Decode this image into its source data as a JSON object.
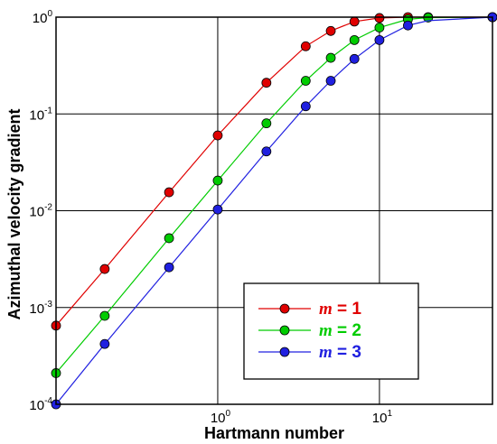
{
  "chart_data": {
    "type": "line",
    "xscale": "log",
    "yscale": "log",
    "xlim": [
      0.1,
      50
    ],
    "ylim": [
      0.0001,
      1
    ],
    "xlabel": "Hartmann number",
    "ylabel": "Azimuthal velocity gradient",
    "grid": true,
    "legend_position": "bottom-right",
    "x_ticks": [
      {
        "value": 1,
        "base": "10",
        "exp": "0"
      },
      {
        "value": 10,
        "base": "10",
        "exp": "1"
      }
    ],
    "y_ticks": [
      {
        "value": 0.0001,
        "base": "10",
        "exp": "-4"
      },
      {
        "value": 0.001,
        "base": "10",
        "exp": "-3"
      },
      {
        "value": 0.01,
        "base": "10",
        "exp": "-2"
      },
      {
        "value": 0.1,
        "base": "10",
        "exp": "-1"
      },
      {
        "value": 1,
        "base": "10",
        "exp": "0"
      }
    ],
    "series": [
      {
        "name": "m = 1",
        "label_var": "m",
        "label_eq": " = 1",
        "color": "#e00000",
        "points": [
          [
            0.1,
            0.00065
          ],
          [
            0.2,
            0.0025
          ],
          [
            0.5,
            0.0155
          ],
          [
            1.0,
            0.06
          ],
          [
            2.0,
            0.21
          ],
          [
            3.5,
            0.5
          ],
          [
            5.0,
            0.72
          ],
          [
            7.0,
            0.9
          ],
          [
            10.0,
            0.98
          ],
          [
            15.0,
            1.0
          ],
          [
            20.0,
            1.0
          ],
          [
            50.0,
            1.0
          ]
        ],
        "markers": [
          [
            0.1,
            0.00065
          ],
          [
            0.2,
            0.0025
          ],
          [
            0.5,
            0.0155
          ],
          [
            1.0,
            0.06
          ],
          [
            2.0,
            0.21
          ],
          [
            3.5,
            0.5
          ],
          [
            5.0,
            0.72
          ],
          [
            7.0,
            0.9
          ],
          [
            10.0,
            0.98
          ],
          [
            15.0,
            1.0
          ],
          [
            20.0,
            1.0
          ],
          [
            50.0,
            1.0
          ]
        ]
      },
      {
        "name": "m = 2",
        "label_var": "m",
        "label_eq": " = 2",
        "color": "#00cc00",
        "points": [
          [
            0.1,
            0.00021
          ],
          [
            0.2,
            0.00082
          ],
          [
            0.5,
            0.0052
          ],
          [
            1.0,
            0.0205
          ],
          [
            2.0,
            0.08
          ],
          [
            3.5,
            0.22
          ],
          [
            5.0,
            0.38
          ],
          [
            7.0,
            0.58
          ],
          [
            10.0,
            0.78
          ],
          [
            15.0,
            0.95
          ],
          [
            20.0,
            0.99
          ],
          [
            50.0,
            1.0
          ]
        ],
        "markers": [
          [
            0.1,
            0.00021
          ],
          [
            0.2,
            0.00082
          ],
          [
            0.5,
            0.0052
          ],
          [
            1.0,
            0.0205
          ],
          [
            2.0,
            0.08
          ],
          [
            3.5,
            0.22
          ],
          [
            5.0,
            0.38
          ],
          [
            7.0,
            0.58
          ],
          [
            10.0,
            0.78
          ],
          [
            15.0,
            0.95
          ],
          [
            20.0,
            0.99
          ],
          [
            50.0,
            1.0
          ]
        ]
      },
      {
        "name": "m = 3",
        "label_var": "m",
        "label_eq": " = 3",
        "color": "#2020e0",
        "points": [
          [
            0.1,
            0.0001
          ],
          [
            0.2,
            0.00042
          ],
          [
            0.5,
            0.0026
          ],
          [
            1.0,
            0.0103
          ],
          [
            2.0,
            0.041
          ],
          [
            3.5,
            0.12
          ],
          [
            5.0,
            0.22
          ],
          [
            7.0,
            0.37
          ],
          [
            10.0,
            0.58
          ],
          [
            15.0,
            0.82
          ],
          [
            20.0,
            0.92
          ],
          [
            50.0,
            1.0
          ]
        ],
        "markers": [
          [
            0.1,
            0.0001
          ],
          [
            0.2,
            0.00042
          ],
          [
            0.5,
            0.0026
          ],
          [
            1.0,
            0.0103
          ],
          [
            2.0,
            0.041
          ],
          [
            3.5,
            0.12
          ],
          [
            5.0,
            0.22
          ],
          [
            7.0,
            0.37
          ],
          [
            10.0,
            0.58
          ],
          [
            15.0,
            0.82
          ],
          [
            50.0,
            1.0
          ]
        ]
      }
    ]
  }
}
